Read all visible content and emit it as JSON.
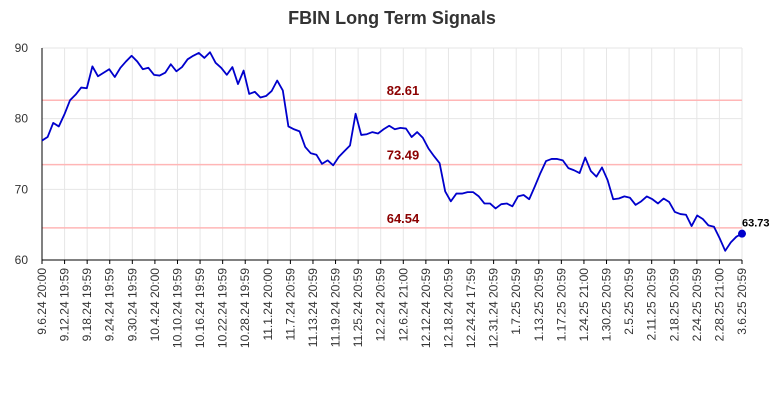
{
  "chart_data": {
    "type": "line",
    "title": "FBIN Long Term Signals",
    "xlabel": "",
    "ylabel": "",
    "ylim": [
      60,
      90
    ],
    "y_ticks": [
      "60",
      "70",
      "80",
      "90"
    ],
    "x_tick_labels": [
      "9.6.24 20:00",
      "9.12.24 19:59",
      "9.18.24 19:59",
      "9.24.24 19:59",
      "9.30.24 19:59",
      "10.4.24 20:00",
      "10.10.24 19:59",
      "10.16.24 19:59",
      "10.22.24 19:59",
      "10.28.24 19:59",
      "11.1.24 20:00",
      "11.7.24 20:59",
      "11.13.24 20:59",
      "11.19.24 20:59",
      "11.25.24 20:59",
      "12.2.24 20:59",
      "12.6.24 21:00",
      "12.12.24 20:59",
      "12.18.24 20:59",
      "12.24.24 17:59",
      "12.31.24 20:59",
      "1.7.25 20:59",
      "1.13.25 20:59",
      "1.17.25 20:59",
      "1.24.25 21:00",
      "1.30.25 20:59",
      "2.5.25 20:59",
      "2.11.25 20:59",
      "2.18.25 20:59",
      "2.24.25 20:59",
      "2.28.25 21:00",
      "3.6.25 20:59"
    ],
    "series": [
      {
        "values": [
          76.9,
          77.4,
          79.4,
          78.9,
          80.6,
          82.6,
          83.4,
          84.4,
          84.3,
          87.4,
          86.0,
          86.5,
          87.0,
          85.9,
          87.2,
          88.1,
          88.9,
          88.1,
          87.0,
          87.2,
          86.2,
          86.1,
          86.5,
          87.7,
          86.7,
          87.3,
          88.4,
          88.9,
          89.3,
          88.6,
          89.4,
          87.9,
          87.2,
          86.2,
          87.3,
          84.9,
          86.8,
          83.5,
          83.8,
          83.0,
          83.2,
          83.9,
          85.4,
          84.0,
          78.9,
          78.5,
          78.2,
          76.0,
          75.1,
          74.9,
          73.6,
          74.1,
          73.4,
          74.6,
          75.4,
          76.2,
          80.7,
          77.7,
          77.8,
          78.1,
          77.9,
          78.5,
          79.0,
          78.5,
          78.7,
          78.6,
          77.4,
          78.1,
          77.3,
          75.8,
          74.7,
          73.7,
          69.7,
          68.3,
          69.4,
          69.4,
          69.6,
          69.6,
          69.0,
          68.0,
          68.0,
          67.3,
          67.9,
          68.0,
          67.6,
          69.0,
          69.2,
          68.6,
          70.4,
          72.3,
          74.0,
          74.3,
          74.3,
          74.1,
          73.0,
          72.7,
          72.3,
          74.5,
          72.6,
          71.8,
          73.1,
          71.3,
          68.6,
          68.7,
          69.0,
          68.8,
          67.8,
          68.3,
          69.0,
          68.6,
          68.0,
          68.7,
          68.2,
          66.8,
          66.5,
          66.4,
          64.8,
          66.3,
          65.8,
          64.9,
          64.7,
          63.1,
          61.3,
          62.5,
          63.3,
          63.73
        ]
      }
    ],
    "horizontal_levels": [
      {
        "value": 82.61,
        "label": "82.61"
      },
      {
        "value": 73.49,
        "label": "73.49"
      },
      {
        "value": 64.54,
        "label": "64.54"
      }
    ],
    "last_value_label": "63.73",
    "colors": {
      "line": "#0000cc",
      "level_line": "#ffb6b6",
      "level_text": "#8b0000",
      "grid": "#e6e6e6",
      "axis": "#000000"
    },
    "grid": true,
    "legend": "none"
  }
}
